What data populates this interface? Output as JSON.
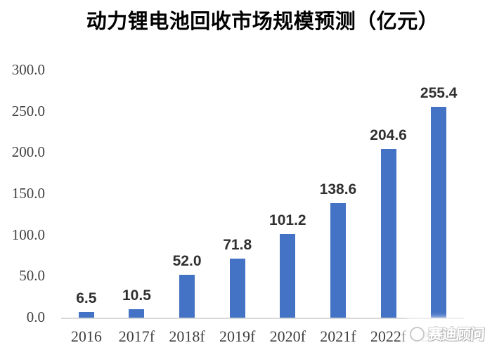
{
  "chart_data": {
    "type": "bar",
    "title": "动力锂电池回收市场规模预测（亿元）",
    "categories": [
      "2016",
      "2017f",
      "2018f",
      "2019f",
      "2020f",
      "2021f",
      "2022f",
      "2023f"
    ],
    "values": [
      6.5,
      10.5,
      52.0,
      71.8,
      101.2,
      138.6,
      204.6,
      255.4
    ],
    "value_labels": [
      "6.5",
      "10.5",
      "52.0",
      "71.8",
      "101.2",
      "138.6",
      "204.6",
      "255.4"
    ],
    "xlabel": "",
    "ylabel": "",
    "ylim": [
      0,
      300
    ],
    "yticks": [
      0,
      50,
      100,
      150,
      200,
      250,
      300
    ],
    "ytick_labels": [
      "0.0",
      "50.0",
      "100.0",
      "150.0",
      "200.0",
      "250.0",
      "300.0"
    ],
    "grid": false,
    "legend_position": "none",
    "bar_color": "#4472C4",
    "axis_text_color": "#3F3F3F",
    "data_label_color": "#303030",
    "baseline_color": "#D9D9D9",
    "title_color": "#000000"
  },
  "watermark": {
    "logo_icon": "ccid-circle-logo",
    "text": "赛迪顾问"
  }
}
